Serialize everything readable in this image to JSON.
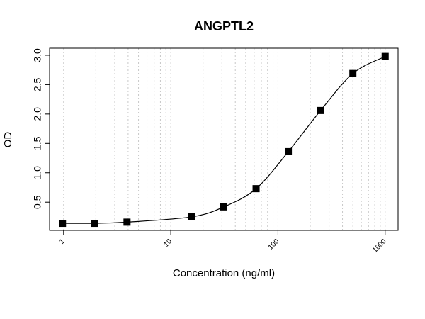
{
  "chart_data": {
    "type": "line",
    "title": "ANGPTL2",
    "x_label": "Concentration (ng/ml)",
    "y_label": "OD",
    "x": [
      0.9765625,
      1.953125,
      3.90625,
      15.625,
      31.25,
      62.5,
      125,
      250,
      500,
      1000
    ],
    "series": [
      {
        "values": [
          0.14,
          0.14,
          0.16,
          0.25,
          0.42,
          0.73,
          1.36,
          2.06,
          2.69,
          2.98
        ],
        "color": "#000000"
      }
    ],
    "xlim": [
      0.74,
      1320
    ],
    "ylim": [
      0.02,
      3.12
    ],
    "xticks": [
      1,
      10,
      100,
      1000
    ],
    "yticks": [
      {
        "value": 0.5,
        "label": "0.5"
      },
      {
        "value": 1,
        "label": "1.0"
      },
      {
        "value": 1.5,
        "label": "1.5"
      },
      {
        "value": 2,
        "label": "2.0"
      },
      {
        "value": 2.5,
        "label": "2.5"
      },
      {
        "value": 3,
        "label": "3.0"
      }
    ],
    "xgrid": [
      1,
      2,
      3,
      4,
      5,
      6,
      7,
      8,
      9,
      10,
      20,
      30,
      40,
      50,
      60,
      70,
      80,
      90,
      100,
      200,
      300,
      400,
      500,
      600,
      700,
      800,
      900,
      1000
    ],
    "xscale": "log",
    "grid": true
  }
}
